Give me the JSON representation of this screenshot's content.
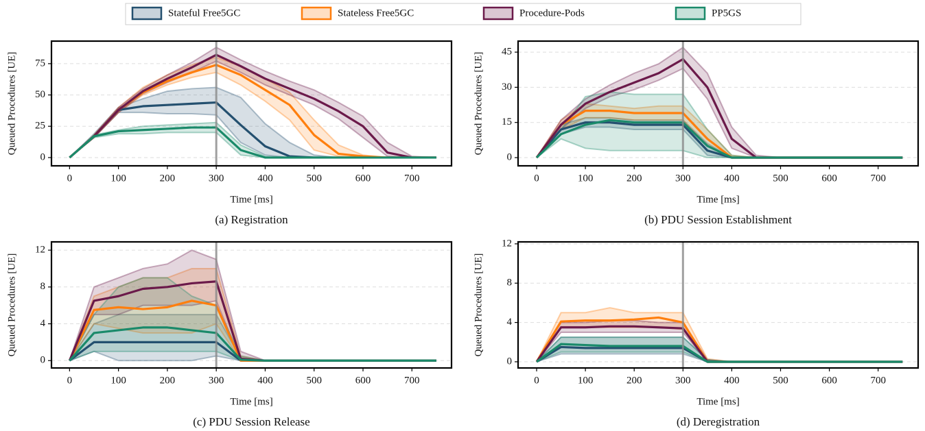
{
  "chart_data": [
    {
      "type": "line",
      "title": "(a) Registration",
      "xlabel": "Time [ms]",
      "ylabel": "Queued Procedures [UE]",
      "legend": "top",
      "x": [
        0,
        50,
        100,
        150,
        200,
        250,
        300,
        350,
        400,
        450,
        500,
        550,
        600,
        650,
        700,
        750
      ],
      "xlim": [
        -37,
        781
      ],
      "ylim": [
        -6.6,
        93
      ],
      "xticks": [
        0,
        100,
        200,
        300,
        400,
        500,
        600,
        700
      ],
      "yticks": [
        0,
        25,
        50,
        75
      ],
      "grid": true,
      "vline": 300,
      "series": [
        {
          "name": "Stateful Free5GC",
          "color": "#24506f",
          "values": [
            0,
            17,
            38,
            41,
            42,
            43,
            44,
            26,
            9,
            1,
            0,
            0,
            0,
            0,
            0,
            0
          ],
          "upper": [
            0,
            19,
            40,
            47,
            53,
            55,
            56,
            48,
            27,
            12,
            2,
            0,
            0,
            0,
            0,
            0
          ],
          "lower": [
            0,
            16,
            36,
            36,
            35,
            35,
            34,
            12,
            2,
            0,
            0,
            0,
            0,
            0,
            0,
            0
          ]
        },
        {
          "name": "Stateless Free5GC",
          "color": "#ff7f0e",
          "values": [
            0,
            17,
            38,
            52,
            61,
            68,
            74,
            66,
            54,
            42,
            18,
            3,
            1,
            0,
            0,
            0
          ],
          "upper": [
            0,
            18,
            40,
            56,
            66,
            74,
            80,
            73,
            63,
            52,
            30,
            10,
            2,
            0,
            0,
            0
          ],
          "lower": [
            0,
            16,
            36,
            50,
            58,
            64,
            68,
            58,
            45,
            30,
            6,
            1,
            0,
            0,
            0,
            0
          ]
        },
        {
          "name": "Procedure-Pods",
          "color": "#6b1a4a",
          "values": [
            0,
            17,
            38,
            53,
            63,
            72,
            82,
            73,
            63,
            55,
            47,
            37,
            25,
            4,
            0,
            0
          ],
          "upper": [
            0,
            18,
            40,
            55,
            66,
            76,
            88,
            78,
            69,
            61,
            54,
            44,
            33,
            12,
            1,
            0
          ],
          "lower": [
            0,
            16,
            36,
            51,
            60,
            68,
            77,
            68,
            58,
            50,
            42,
            31,
            16,
            1,
            0,
            0
          ]
        },
        {
          "name": "PP5GS",
          "color": "#1a8a6a",
          "values": [
            0,
            17,
            21,
            22,
            23,
            24,
            24,
            6,
            0,
            0,
            0,
            0,
            0,
            0,
            0,
            0
          ],
          "upper": [
            0,
            18,
            22,
            25,
            26,
            27,
            28,
            10,
            1,
            0,
            0,
            0,
            0,
            0,
            0,
            0
          ],
          "lower": [
            0,
            16,
            19,
            19,
            20,
            20,
            20,
            2,
            0,
            0,
            0,
            0,
            0,
            0,
            0,
            0
          ]
        }
      ]
    },
    {
      "type": "line",
      "title": "(b) PDU Session Establishment",
      "xlabel": "Time [ms]",
      "ylabel": "Queued Procedures [UE]",
      "x": [
        0,
        50,
        100,
        150,
        200,
        250,
        300,
        350,
        400,
        450,
        500,
        550,
        600,
        650,
        700,
        750
      ],
      "xlim": [
        -38,
        782
      ],
      "ylim": [
        -3.5,
        49.7
      ],
      "xticks": [
        0,
        100,
        200,
        300,
        400,
        500,
        600,
        700
      ],
      "yticks": [
        0,
        15,
        30,
        45
      ],
      "grid": true,
      "vline": 300,
      "series": [
        {
          "color": "#24506f",
          "values": [
            0,
            12,
            15,
            15,
            14,
            14,
            14,
            3,
            0,
            0,
            0,
            0,
            0,
            0,
            0,
            0
          ],
          "upper": [
            0,
            14,
            17,
            17,
            16,
            16,
            16,
            6,
            0,
            0,
            0,
            0,
            0,
            0,
            0,
            0
          ],
          "lower": [
            0,
            10,
            13,
            13,
            12,
            12,
            12,
            1,
            0,
            0,
            0,
            0,
            0,
            0,
            0,
            0
          ]
        },
        {
          "color": "#ff7f0e",
          "values": [
            0,
            14,
            20,
            20,
            19,
            19,
            19,
            8,
            0,
            0,
            0,
            0,
            0,
            0,
            0,
            0
          ],
          "upper": [
            0,
            16,
            23,
            22,
            21,
            22,
            22,
            12,
            1,
            0,
            0,
            0,
            0,
            0,
            0,
            0
          ],
          "lower": [
            0,
            12,
            17,
            17,
            16,
            16,
            16,
            5,
            0,
            0,
            0,
            0,
            0,
            0,
            0,
            0
          ]
        },
        {
          "color": "#6b1a4a",
          "values": [
            0,
            14,
            23,
            28,
            32,
            36,
            42,
            30,
            8,
            0,
            0,
            0,
            0,
            0,
            0,
            0
          ],
          "upper": [
            0,
            16,
            25,
            31,
            36,
            40,
            47,
            36,
            13,
            1,
            0,
            0,
            0,
            0,
            0,
            0
          ],
          "lower": [
            0,
            12,
            21,
            26,
            29,
            33,
            38,
            25,
            4,
            0,
            0,
            0,
            0,
            0,
            0,
            0
          ]
        },
        {
          "color": "#1a8a6a",
          "values": [
            0,
            10,
            14,
            16,
            15,
            15,
            15,
            5,
            0,
            0,
            0,
            0,
            0,
            0,
            0,
            0
          ],
          "upper": [
            0,
            12,
            26,
            28,
            27,
            27,
            27,
            12,
            1,
            0,
            0,
            0,
            0,
            0,
            0,
            0
          ],
          "lower": [
            0,
            8,
            4,
            3,
            3,
            3,
            3,
            0,
            0,
            0,
            0,
            0,
            0,
            0,
            0,
            0
          ]
        }
      ]
    },
    {
      "type": "line",
      "title": "(c) PDU Session Release",
      "xlabel": "Time [ms]",
      "ylabel": "Queued Procedures [UE]",
      "x": [
        0,
        50,
        100,
        150,
        200,
        250,
        300,
        350,
        400,
        450,
        500,
        550,
        600,
        650,
        700,
        750
      ],
      "xlim": [
        -37,
        781
      ],
      "ylim": [
        -0.8,
        12.9
      ],
      "xticks": [
        0,
        100,
        200,
        300,
        400,
        500,
        600,
        700
      ],
      "yticks": [
        0,
        4,
        8,
        12
      ],
      "grid": true,
      "vline": 300,
      "series": [
        {
          "color": "#24506f",
          "values": [
            0,
            2,
            2,
            2,
            2,
            2,
            2,
            0,
            0,
            0,
            0,
            0,
            0,
            0,
            0,
            0
          ],
          "upper": [
            0,
            4,
            5,
            5,
            5,
            5,
            5,
            0.3,
            0,
            0,
            0,
            0,
            0,
            0,
            0,
            0
          ],
          "lower": [
            0,
            1,
            0,
            0,
            0,
            0,
            0.5,
            0,
            0,
            0,
            0,
            0,
            0,
            0,
            0,
            0
          ]
        },
        {
          "color": "#ff7f0e",
          "values": [
            0,
            5.5,
            5.8,
            5.6,
            5.8,
            6.5,
            6,
            0,
            0,
            0,
            0,
            0,
            0,
            0,
            0,
            0
          ],
          "upper": [
            0,
            7,
            8,
            9,
            9,
            10,
            10,
            0.5,
            0,
            0,
            0,
            0,
            0,
            0,
            0,
            0
          ],
          "lower": [
            0,
            4,
            3.5,
            3,
            3,
            3,
            4,
            0,
            0,
            0,
            0,
            0,
            0,
            0,
            0,
            0
          ]
        },
        {
          "color": "#6b1a4a",
          "values": [
            0,
            6.5,
            7,
            7.8,
            8,
            8.4,
            8.6,
            0.2,
            0,
            0,
            0,
            0,
            0,
            0,
            0,
            0
          ],
          "upper": [
            0,
            8,
            9,
            10,
            10.5,
            12,
            11,
            1,
            0,
            0,
            0,
            0,
            0,
            0,
            0,
            0
          ],
          "lower": [
            0,
            5,
            5,
            6,
            6,
            6,
            6.5,
            0,
            0,
            0,
            0,
            0,
            0,
            0,
            0,
            0
          ]
        },
        {
          "color": "#1a8a6a",
          "values": [
            0,
            3,
            3.3,
            3.6,
            3.6,
            3.3,
            3,
            0.1,
            0,
            0,
            0,
            0,
            0,
            0,
            0,
            0
          ],
          "upper": [
            0,
            5,
            8,
            9,
            9,
            7,
            6,
            0.5,
            0,
            0,
            0,
            0,
            0,
            0,
            0,
            0
          ],
          "lower": [
            0,
            1,
            1,
            1,
            1,
            1,
            1,
            0,
            0,
            0,
            0,
            0,
            0,
            0,
            0,
            0
          ]
        }
      ]
    },
    {
      "type": "line",
      "title": "(d) Deregistration",
      "xlabel": "Time [ms]",
      "ylabel": "Queued Procedures [UE]",
      "x": [
        0,
        50,
        100,
        150,
        200,
        250,
        300,
        350,
        400,
        450,
        500,
        550,
        600,
        650,
        700,
        750
      ],
      "xlim": [
        -38,
        782
      ],
      "ylim": [
        -0.63,
        12.2
      ],
      "xticks": [
        0,
        100,
        200,
        300,
        400,
        500,
        600,
        700
      ],
      "yticks": [
        0,
        4,
        8,
        12
      ],
      "grid": true,
      "vline": 300,
      "series": [
        {
          "color": "#24506f",
          "values": [
            0,
            1.5,
            1.4,
            1.4,
            1.4,
            1.4,
            1.4,
            0,
            0,
            0,
            0,
            0,
            0,
            0,
            0,
            0
          ],
          "upper": [
            0,
            2.5,
            2.5,
            2.5,
            2.5,
            2.5,
            2.5,
            0.2,
            0,
            0,
            0,
            0,
            0,
            0,
            0,
            0
          ],
          "lower": [
            0,
            0.8,
            0.8,
            0.8,
            0.8,
            0.8,
            0.8,
            0,
            0,
            0,
            0,
            0,
            0,
            0,
            0,
            0
          ]
        },
        {
          "color": "#ff7f0e",
          "values": [
            0,
            4.1,
            4.2,
            4.2,
            4.3,
            4.5,
            4,
            0,
            0,
            0,
            0,
            0,
            0,
            0,
            0,
            0
          ],
          "upper": [
            0,
            5,
            5,
            5.5,
            5,
            5,
            5,
            0.3,
            0,
            0,
            0,
            0,
            0,
            0,
            0,
            0
          ],
          "lower": [
            0,
            3.5,
            3.5,
            3.5,
            3.5,
            3.5,
            3.3,
            0,
            0,
            0,
            0,
            0,
            0,
            0,
            0,
            0
          ]
        },
        {
          "color": "#6b1a4a",
          "values": [
            0,
            3.5,
            3.5,
            3.6,
            3.6,
            3.5,
            3.4,
            0,
            0,
            0,
            0,
            0,
            0,
            0,
            0,
            0
          ],
          "upper": [
            0,
            4,
            4,
            4.2,
            4.2,
            4,
            4,
            0.2,
            0,
            0,
            0,
            0,
            0,
            0,
            0,
            0
          ],
          "lower": [
            0,
            3,
            3,
            3,
            3,
            3,
            3,
            0,
            0,
            0,
            0,
            0,
            0,
            0,
            0,
            0
          ]
        },
        {
          "color": "#1a8a6a",
          "values": [
            0,
            1.8,
            1.7,
            1.6,
            1.6,
            1.6,
            1.6,
            0,
            0,
            0,
            0,
            0,
            0,
            0,
            0,
            0
          ],
          "upper": [
            0,
            2.5,
            2.5,
            2.5,
            2.5,
            2.5,
            2.5,
            0.2,
            0,
            0,
            0,
            0,
            0,
            0,
            0,
            0
          ],
          "lower": [
            0,
            1,
            1,
            1,
            1,
            1,
            1,
            0,
            0,
            0,
            0,
            0,
            0,
            0,
            0,
            0
          ]
        }
      ]
    }
  ]
}
